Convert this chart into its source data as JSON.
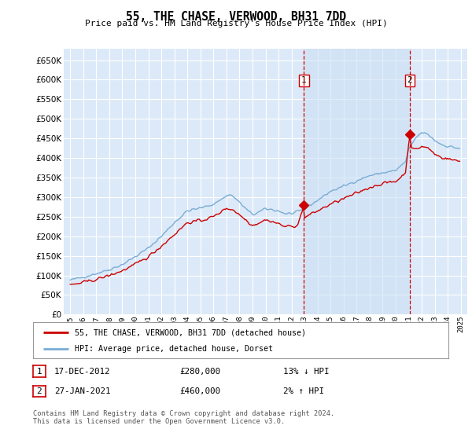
{
  "title": "55, THE CHASE, VERWOOD, BH31 7DD",
  "subtitle": "Price paid vs. HM Land Registry's House Price Index (HPI)",
  "ylim": [
    0,
    680000
  ],
  "yticks": [
    0,
    50000,
    100000,
    150000,
    200000,
    250000,
    300000,
    350000,
    400000,
    450000,
    500000,
    550000,
    600000,
    650000
  ],
  "plot_bg": "#dce9f8",
  "shade_bg": "#e8f0fb",
  "grid_color": "#ffffff",
  "sale1_date": "17-DEC-2012",
  "sale1_price": 280000,
  "sale1_hpi": "13% ↓ HPI",
  "sale2_date": "27-JAN-2021",
  "sale2_price": 460000,
  "sale2_hpi": "2% ↑ HPI",
  "legend_label1": "55, THE CHASE, VERWOOD, BH31 7DD (detached house)",
  "legend_label2": "HPI: Average price, detached house, Dorset",
  "footer": "Contains HM Land Registry data © Crown copyright and database right 2024.\nThis data is licensed under the Open Government Licence v3.0.",
  "line_color_red": "#cc0000",
  "line_color_blue": "#7aadd4",
  "sale1_x": 2012.96,
  "sale2_x": 2021.07,
  "vline1_x": 2012.96,
  "vline2_x": 2021.07,
  "xlim_left": 1994.5,
  "xlim_right": 2025.5
}
